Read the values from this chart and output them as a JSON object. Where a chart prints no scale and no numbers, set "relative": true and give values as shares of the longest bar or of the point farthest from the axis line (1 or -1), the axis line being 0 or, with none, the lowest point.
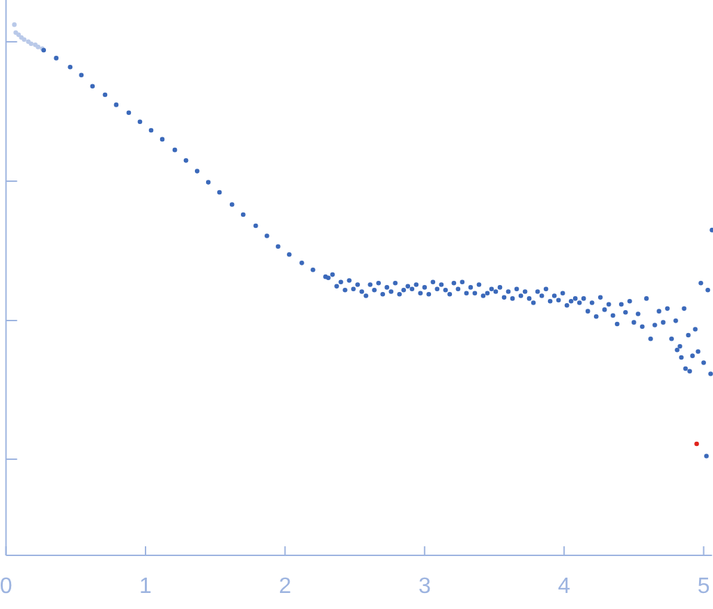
{
  "chart_data": {
    "type": "scatter",
    "relative": true,
    "marker": "circle",
    "xlim": [
      0,
      5.06
    ],
    "xticks": [
      0,
      1,
      2,
      3,
      4,
      5
    ],
    "series": [
      {
        "color": "#b9c9e9",
        "x": [
          0.06,
          0.07,
          0.09,
          0.11,
          0.13,
          0.16,
          0.18,
          0.21,
          0.23,
          0.26
        ],
        "values": [
          1.0,
          0.985,
          0.981,
          0.976,
          0.972,
          0.968,
          0.964,
          0.962,
          0.958,
          0.955
        ]
      },
      {
        "color": "#3b69ba",
        "x": [
          0.27,
          0.36,
          0.46,
          0.54,
          0.62,
          0.71,
          0.79,
          0.88,
          0.96,
          1.04,
          1.12,
          1.21,
          1.29,
          1.37,
          1.45,
          1.53,
          1.62,
          1.7,
          1.79,
          1.87,
          1.95,
          2.03,
          2.12,
          2.2,
          2.29,
          2.31,
          2.34,
          2.37,
          2.4,
          2.43,
          2.46,
          2.49,
          2.52,
          2.55,
          2.58,
          2.61,
          2.64,
          2.67,
          2.7,
          2.73,
          2.76,
          2.79,
          2.82,
          2.85,
          2.88,
          2.91,
          2.94,
          2.97,
          3.0,
          3.03,
          3.06,
          3.09,
          3.12,
          3.15,
          3.18,
          3.21,
          3.24,
          3.27,
          3.3,
          3.33,
          3.36,
          3.39,
          3.42,
          3.45,
          3.48,
          3.51,
          3.54,
          3.57,
          3.6,
          3.63,
          3.66,
          3.69,
          3.72,
          3.75,
          3.78,
          3.81,
          3.84,
          3.87,
          3.9,
          3.93,
          3.96,
          3.99,
          4.02,
          4.05,
          4.08,
          4.11,
          4.14,
          4.17,
          4.2,
          4.23,
          4.26,
          4.29,
          4.32,
          4.35,
          4.38,
          4.41,
          4.44,
          4.47,
          4.5,
          4.53,
          4.56,
          4.59,
          4.62,
          4.65,
          4.68,
          4.71,
          4.74,
          4.77,
          4.8,
          4.81,
          4.83,
          4.84,
          4.86,
          4.87,
          4.89,
          4.9,
          4.92,
          4.94,
          4.96,
          4.98,
          5.0,
          5.02,
          5.03,
          5.05,
          5.06
        ],
        "values": [
          0.952,
          0.937,
          0.92,
          0.905,
          0.884,
          0.868,
          0.849,
          0.834,
          0.817,
          0.801,
          0.784,
          0.764,
          0.744,
          0.724,
          0.703,
          0.684,
          0.661,
          0.642,
          0.621,
          0.602,
          0.582,
          0.567,
          0.551,
          0.538,
          0.525,
          0.523,
          0.529,
          0.507,
          0.515,
          0.5,
          0.518,
          0.502,
          0.51,
          0.497,
          0.489,
          0.51,
          0.5,
          0.513,
          0.492,
          0.505,
          0.497,
          0.513,
          0.492,
          0.5,
          0.507,
          0.502,
          0.51,
          0.494,
          0.505,
          0.492,
          0.515,
          0.502,
          0.51,
          0.5,
          0.492,
          0.513,
          0.502,
          0.515,
          0.494,
          0.505,
          0.494,
          0.51,
          0.489,
          0.494,
          0.502,
          0.497,
          0.505,
          0.486,
          0.497,
          0.484,
          0.502,
          0.489,
          0.497,
          0.484,
          0.476,
          0.497,
          0.489,
          0.502,
          0.479,
          0.489,
          0.481,
          0.494,
          0.471,
          0.479,
          0.484,
          0.476,
          0.484,
          0.46,
          0.476,
          0.45,
          0.486,
          0.463,
          0.473,
          0.452,
          0.436,
          0.473,
          0.458,
          0.479,
          0.439,
          0.455,
          0.431,
          0.484,
          0.408,
          0.434,
          0.46,
          0.439,
          0.465,
          0.408,
          0.442,
          0.387,
          0.394,
          0.373,
          0.465,
          0.352,
          0.415,
          0.347,
          0.376,
          0.426,
          0.384,
          0.513,
          0.363,
          0.187,
          0.5,
          0.342,
          0.613
        ]
      },
      {
        "color": "#e0231c",
        "x": [
          4.95
        ],
        "values": [
          0.21
        ]
      }
    ]
  }
}
